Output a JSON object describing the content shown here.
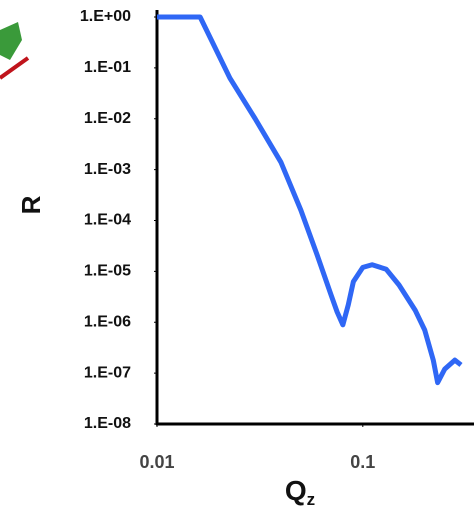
{
  "chart_data": {
    "type": "line",
    "x_label": "Q",
    "x_label_sub": "z",
    "y_label": "R",
    "x": [
      0.01,
      0.0162,
      0.0226,
      0.03,
      0.04,
      0.05,
      0.06,
      0.07,
      0.075,
      0.08,
      0.085,
      0.09,
      0.1,
      0.111,
      0.13,
      0.15,
      0.18,
      0.2,
      0.22,
      0.231,
      0.25,
      0.28,
      0.3
    ],
    "series": [
      {
        "color": "#2f67f5",
        "values": [
          1,
          1,
          0.063,
          0.01,
          0.0014,
          0.00016,
          2.1e-05,
          3.5e-06,
          1.6e-06,
          8.9e-07,
          2.2e-06,
          6.3e-06,
          1.2e-05,
          1.35e-05,
          1.1e-05,
          5.4e-06,
          1.7e-06,
          7e-07,
          1.8e-07,
          6.5e-08,
          1.2e-07,
          1.8e-07,
          1.45e-07
        ]
      }
    ],
    "xlim": [
      0.01,
      0.3
    ],
    "ylim": [
      1e-08,
      1
    ],
    "xlog": true,
    "ylog": true,
    "xticks": [
      0.01,
      0.1
    ],
    "yticks": [
      {
        "value": 1,
        "label": "1.E+00"
      },
      {
        "value": 0.1,
        "label": "1.E-01"
      },
      {
        "value": 0.01,
        "label": "1.E-02"
      },
      {
        "value": 0.001,
        "label": "1.E-03"
      },
      {
        "value": 0.0001,
        "label": "1.E-04"
      },
      {
        "value": 1e-05,
        "label": "1.E-05"
      },
      {
        "value": 1e-06,
        "label": "1.E-06"
      },
      {
        "value": 1e-07,
        "label": "1.E-07"
      },
      {
        "value": 1e-08,
        "label": "1.E-08"
      }
    ]
  }
}
